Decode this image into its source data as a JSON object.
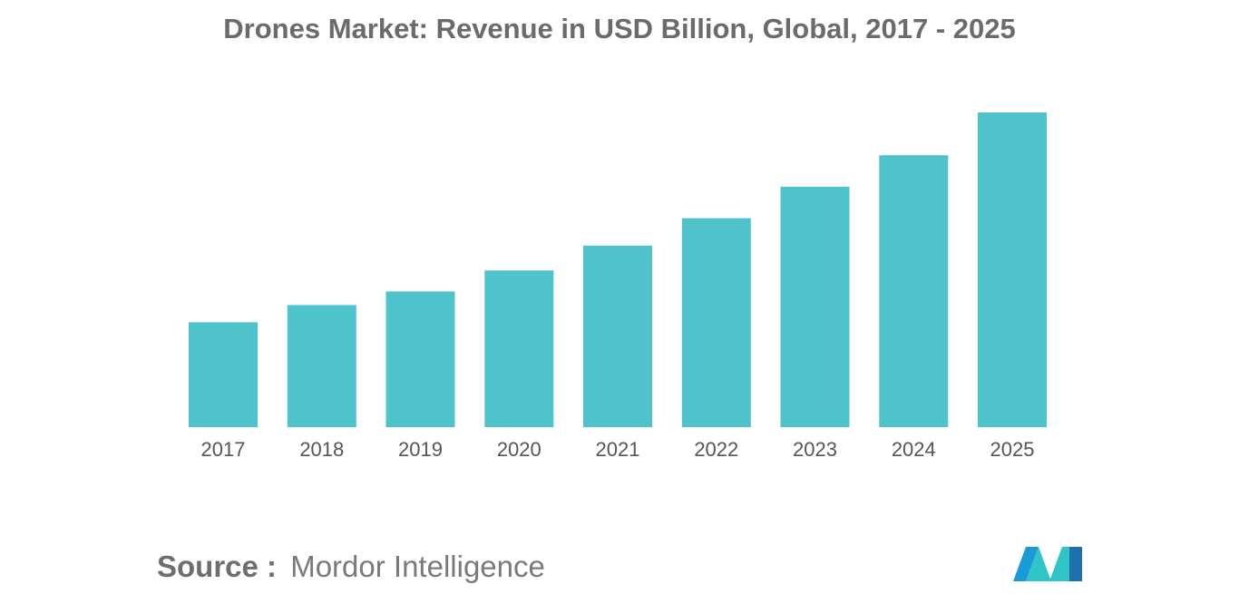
{
  "chart_data": {
    "type": "bar",
    "title": "Drones Market: Revenue in USD Billion, Global, 2017 - 2025",
    "categories": [
      "2017",
      "2018",
      "2019",
      "2020",
      "2021",
      "2022",
      "2023",
      "2024",
      "2025"
    ],
    "values": [
      33.3,
      38.8,
      43.1,
      49.8,
      57.7,
      66.4,
      76.4,
      86.4,
      100
    ],
    "xlabel": "",
    "ylabel": "",
    "ylim": [
      0,
      100
    ],
    "grid": false,
    "legend": "none",
    "bar_color": "#4fc3cb"
  },
  "source": {
    "label": "Source",
    "separator": ":",
    "text": "Mordor Intelligence"
  },
  "logo": {
    "icon": "mordor-intelligence-logo-icon",
    "colors": [
      "#1a9bd7",
      "#2ec4c8",
      "#1f6fae"
    ]
  }
}
